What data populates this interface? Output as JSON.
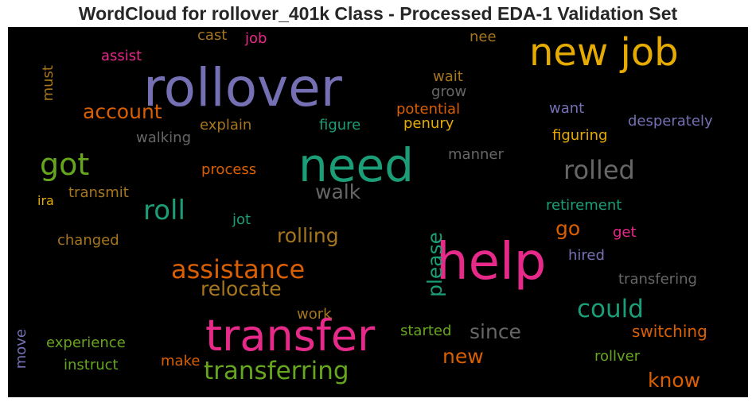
{
  "title": "WordCloud for rollover_401k Class - Processed EDA-1 Validation Set",
  "chart_data": {
    "type": "wordcloud",
    "title": "WordCloud for rollover_401k Class - Processed EDA-1 Validation Set",
    "background": "#000000",
    "words": [
      {
        "text": "rollover",
        "weight": 1.0,
        "color": "#7570b3"
      },
      {
        "text": "need",
        "weight": 0.85,
        "color": "#1b9e77"
      },
      {
        "text": "help",
        "weight": 0.85,
        "color": "#e7298a"
      },
      {
        "text": "new job",
        "weight": 0.7,
        "color": "#e6ab02"
      },
      {
        "text": "transfer",
        "weight": 0.8,
        "color": "#e7298a"
      },
      {
        "text": "got",
        "weight": 0.55,
        "color": "#66a61e"
      },
      {
        "text": "roll",
        "weight": 0.5,
        "color": "#1b9e77"
      },
      {
        "text": "rolled",
        "weight": 0.45,
        "color": "#666666"
      },
      {
        "text": "assistance",
        "weight": 0.47,
        "color": "#d95f02"
      },
      {
        "text": "transferring",
        "weight": 0.47,
        "color": "#66a61e"
      },
      {
        "text": "could",
        "weight": 0.45,
        "color": "#1b9e77"
      },
      {
        "text": "account",
        "weight": 0.38,
        "color": "#d95f02"
      },
      {
        "text": "walk",
        "weight": 0.38,
        "color": "#666666"
      },
      {
        "text": "rolling",
        "weight": 0.38,
        "color": "#a6761d"
      },
      {
        "text": "relocate",
        "weight": 0.38,
        "color": "#a6761d"
      },
      {
        "text": "please",
        "weight": 0.38,
        "color": "#1b9e77"
      },
      {
        "text": "go",
        "weight": 0.38,
        "color": "#d95f02"
      },
      {
        "text": "since",
        "weight": 0.38,
        "color": "#666666"
      },
      {
        "text": "new",
        "weight": 0.38,
        "color": "#d95f02"
      },
      {
        "text": "know",
        "weight": 0.38,
        "color": "#d95f02"
      },
      {
        "text": "switching",
        "weight": 0.3,
        "color": "#d95f02"
      },
      {
        "text": "wait",
        "weight": 0.27,
        "color": "#a6761d"
      },
      {
        "text": "grow",
        "weight": 0.27,
        "color": "#666666"
      },
      {
        "text": "potential",
        "weight": 0.27,
        "color": "#d95f02"
      },
      {
        "text": "penury",
        "weight": 0.27,
        "color": "#e6ab02"
      },
      {
        "text": "figure",
        "weight": 0.27,
        "color": "#1b9e77"
      },
      {
        "text": "explain",
        "weight": 0.27,
        "color": "#a6761d"
      },
      {
        "text": "walking",
        "weight": 0.27,
        "color": "#666666"
      },
      {
        "text": "want",
        "weight": 0.27,
        "color": "#7570b3"
      },
      {
        "text": "desperately",
        "weight": 0.27,
        "color": "#7570b3"
      },
      {
        "text": "figuring",
        "weight": 0.27,
        "color": "#e6ab02"
      },
      {
        "text": "manner",
        "weight": 0.27,
        "color": "#666666"
      },
      {
        "text": "process",
        "weight": 0.27,
        "color": "#d95f02"
      },
      {
        "text": "transmit",
        "weight": 0.27,
        "color": "#a6761d"
      },
      {
        "text": "retirement",
        "weight": 0.27,
        "color": "#1b9e77"
      },
      {
        "text": "jot",
        "weight": 0.27,
        "color": "#1b9e77"
      },
      {
        "text": "get",
        "weight": 0.27,
        "color": "#e7298a"
      },
      {
        "text": "changed",
        "weight": 0.27,
        "color": "#a6761d"
      },
      {
        "text": "hired",
        "weight": 0.27,
        "color": "#7570b3"
      },
      {
        "text": "transfering",
        "weight": 0.27,
        "color": "#666666"
      },
      {
        "text": "work",
        "weight": 0.27,
        "color": "#a6761d"
      },
      {
        "text": "started",
        "weight": 0.27,
        "color": "#66a61e"
      },
      {
        "text": "experience",
        "weight": 0.27,
        "color": "#66a61e"
      },
      {
        "text": "instruct",
        "weight": 0.27,
        "color": "#66a61e"
      },
      {
        "text": "make",
        "weight": 0.27,
        "color": "#d95f02"
      },
      {
        "text": "rollver",
        "weight": 0.27,
        "color": "#66a61e"
      },
      {
        "text": "cast",
        "weight": 0.24,
        "color": "#a6761d"
      },
      {
        "text": "job",
        "weight": 0.24,
        "color": "#e7298a"
      },
      {
        "text": "nee",
        "weight": 0.24,
        "color": "#a6761d"
      },
      {
        "text": "assist",
        "weight": 0.24,
        "color": "#e7298a"
      },
      {
        "text": "must",
        "weight": 0.24,
        "color": "#a6761d"
      },
      {
        "text": "ira",
        "weight": 0.22,
        "color": "#e6ab02"
      },
      {
        "text": "move",
        "weight": 0.24,
        "color": "#7570b3"
      }
    ]
  }
}
